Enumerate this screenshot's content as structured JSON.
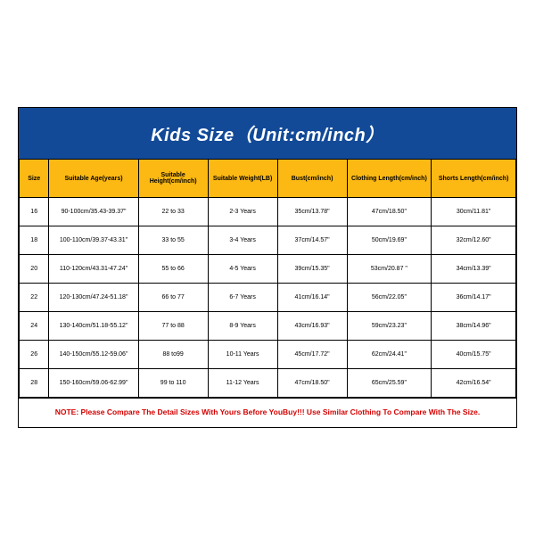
{
  "title": "Kids Size（Unit:cm/inch）",
  "title_bg": "#124a98",
  "title_color": "#ffffff",
  "header_bg": "#fdb913",
  "columns": [
    "Size",
    "Suitable Age(years)",
    "Suitable Height(cm/inch)",
    "Suitable Weight(LB)",
    "Bust(cm/inch)",
    "Clothing Length(cm/inch)",
    "Shorts Length(cm/inch)"
  ],
  "rows": [
    [
      "16",
      "90-100cm/35.43-39.37\"",
      "22 to 33",
      "2-3 Years",
      "35cm/13.78\"",
      "47cm/18.50\"",
      "30cm/11.81\""
    ],
    [
      "18",
      "100-110cm/39.37-43.31\"",
      "33 to 55",
      "3-4 Years",
      "37cm/14.57\"",
      "50cm/19.69\"",
      "32cm/12.60\""
    ],
    [
      "20",
      "110-120cm/43.31-47.24\"",
      "55 to 66",
      "4-5 Years",
      "39cm/15.35\"",
      "53cm/20.87 \"",
      "34cm/13.39\""
    ],
    [
      "22",
      "120-130cm/47.24-51.18\"",
      "66 to 77",
      "6-7 Years",
      "41cm/16.14\"",
      "56cm/22.05\"",
      "36cm/14.17\""
    ],
    [
      "24",
      "130-140cm/51.18-55.12\"",
      "77 to 88",
      "8-9 Years",
      "43cm/16.93\"",
      "59cm/23.23\"",
      "38cm/14.96\""
    ],
    [
      "26",
      "140-150cm/55.12-59.06\"",
      "88 to99",
      "10-11 Years",
      "45cm/17.72\"",
      "62cm/24.41\"",
      "40cm/15.75\""
    ],
    [
      "28",
      "150-160cm/59.06-62.99\"",
      "99 to 110",
      "11-12 Years",
      "47cm/18.50\"",
      "65cm/25.59\"",
      "42cm/16.54\""
    ]
  ],
  "note": "NOTE: Please Compare The Detail Sizes With Yours Before YouBuy!!! Use Similar Clothing To Compare With The Size.",
  "note_color": "#d40000"
}
